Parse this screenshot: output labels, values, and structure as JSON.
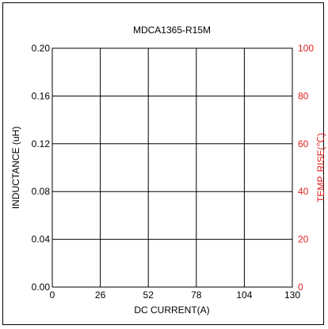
{
  "chart_data": {
    "type": "line",
    "title": "MDCA1365-R15M",
    "xlabel": "DC CURRENT(A)",
    "ylabel": "INDUCTANCE (uH)",
    "y2label": "TEMP. RISE(℃)",
    "xlim": [
      0,
      130
    ],
    "ylim": [
      0,
      0.2
    ],
    "y2lim": [
      0,
      100
    ],
    "x_ticks": [
      "0",
      "26",
      "52",
      "78",
      "104",
      "130"
    ],
    "y_ticks": [
      "0.00",
      "0.04",
      "0.08",
      "0.12",
      "0.16",
      "0.20"
    ],
    "y2_ticks": [
      "0",
      "20",
      "40",
      "60",
      "80",
      "100"
    ],
    "grid": true,
    "series": [],
    "colors": {
      "left_axis": "#000000",
      "right_axis": "#e02020",
      "grid": "#000000"
    }
  }
}
